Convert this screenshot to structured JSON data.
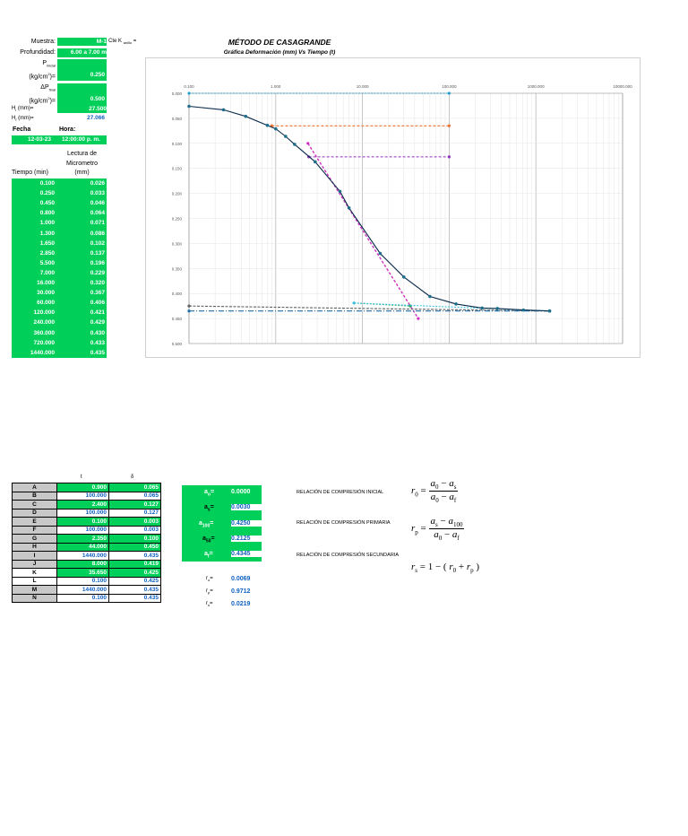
{
  "header": {
    "muestra_label": "Muestra:",
    "muestra_value": "M-1",
    "cte_label": "Cte K",
    "cte_sub": "anillo",
    "cte_eq": "=",
    "profundidad_label": "Profundidad:",
    "profundidad_value": "6.00 a 7.00 m",
    "p_inicial_label": "P",
    "p_inicial_sub": "inicial",
    "p_inicial_units": "(kg/cm",
    "p_inicial_units_end": ")=",
    "p_inicial_value": "0.250",
    "dp_final_label": "ΔP",
    "dp_final_sub": "final",
    "dp_final_units": "(kg/cm",
    "dp_final_units_end": ")=",
    "dp_final_value": "0.500",
    "hi_label": "H",
    "hi_sub": "i",
    "hi_units": "(mm)=",
    "hi_value": "27.500",
    "hf_label": "H",
    "hf_sub": "f",
    "hf_units": "(mm)=",
    "hf_value": "27.066",
    "fecha_label": "Fecha",
    "hora_label": "Hora:",
    "fecha_value": "12-03-23",
    "hora_value": "12:00:00 p. m.",
    "lectura_label_1": "Lectura de",
    "lectura_label_2": "Micrometro",
    "lectura_label_3": "(mm)",
    "tiempo_label": "Tiempo (min)"
  },
  "readings": [
    {
      "t": "0.100",
      "d": "0.026"
    },
    {
      "t": "0.250",
      "d": "0.033"
    },
    {
      "t": "0.450",
      "d": "0.046"
    },
    {
      "t": "0.800",
      "d": "0.064"
    },
    {
      "t": "1.000",
      "d": "0.071"
    },
    {
      "t": "1.300",
      "d": "0.086"
    },
    {
      "t": "1.650",
      "d": "0.102"
    },
    {
      "t": "2.850",
      "d": "0.137"
    },
    {
      "t": "5.500",
      "d": "0.196"
    },
    {
      "t": "7.000",
      "d": "0.229"
    },
    {
      "t": "16.000",
      "d": "0.320"
    },
    {
      "t": "30.000",
      "d": "0.367"
    },
    {
      "t": "60.000",
      "d": "0.406"
    },
    {
      "t": "120.000",
      "d": "0.421"
    },
    {
      "t": "240.000",
      "d": "0.429"
    },
    {
      "t": "360.000",
      "d": "0.430"
    },
    {
      "t": "720.000",
      "d": "0.433"
    },
    {
      "t": "1440.000",
      "d": "0.435"
    }
  ],
  "chart_data": {
    "type": "scatter",
    "title": "MÉTODO DE CASAGRANDE",
    "subtitle": "Gráfica Deformación (mm) Vs Tiempo (t)",
    "x_scale": "log",
    "xlim": [
      0.1,
      10000
    ],
    "ylim": [
      0.5,
      0.0
    ],
    "x_ticks": [
      "0.100",
      "1.000",
      "10.000",
      "100.000",
      "1000.000",
      "10000.000"
    ],
    "y_ticks": [
      "0.000",
      "0.050",
      "0.100",
      "0.150",
      "0.200",
      "0.250",
      "0.300",
      "0.350",
      "0.400",
      "0.450",
      "0.500"
    ],
    "grid": true,
    "series": [
      {
        "x": [
          0.1,
          0.25,
          0.45,
          0.8,
          1.0,
          1.3,
          1.65,
          2.85,
          5.5,
          7.0,
          16.0,
          30.0,
          60.0,
          120.0,
          240.0,
          360.0,
          720.0,
          1440.0
        ],
        "y": [
          0.026,
          0.033,
          0.046,
          0.064,
          0.071,
          0.086,
          0.102,
          0.137,
          0.196,
          0.229,
          0.32,
          0.367,
          0.406,
          0.421,
          0.429,
          0.43,
          0.433,
          0.435
        ]
      }
    ],
    "lines": [
      {
        "x": [
          0.1,
          100
        ],
        "y": [
          0.0,
          0.0
        ],
        "color": "#2aa0c8"
      },
      {
        "x": [
          0.9,
          100
        ],
        "y": [
          0.065,
          0.065
        ],
        "color": "#f07030"
      },
      {
        "x": [
          2.4,
          100
        ],
        "y": [
          0.127,
          0.127
        ],
        "color": "#9030c0"
      },
      {
        "x": [
          2.35,
          44
        ],
        "y": [
          0.1,
          0.45
        ],
        "color": "#d030c0"
      },
      {
        "x": [
          8.0,
          35.65
        ],
        "y": [
          0.419,
          0.425
        ],
        "color": "#20b060"
      },
      {
        "x": [
          0.1,
          1440
        ],
        "y": [
          0.425,
          0.435
        ],
        "color": "#606060"
      },
      {
        "x": [
          0.1,
          1440
        ],
        "y": [
          0.435,
          0.435
        ],
        "color": "#1f6fa8"
      },
      {
        "x": [
          8.0,
          1440
        ],
        "y": [
          0.419,
          0.435
        ],
        "color": "#40c0e0"
      }
    ]
  },
  "points_table": {
    "head_t": "t",
    "head_d": "δ",
    "rows": [
      {
        "k": "A",
        "t": "0.900",
        "d": "0.065"
      },
      {
        "k": "B",
        "t": "100.000",
        "d": "0.065"
      },
      {
        "k": "C",
        "t": "2.400",
        "d": "0.127"
      },
      {
        "k": "D",
        "t": "100.000",
        "d": "0.127"
      },
      {
        "k": "E",
        "t": "0.100",
        "d": "0.003"
      },
      {
        "k": "F",
        "t": "100.000",
        "d": "0.003"
      },
      {
        "k": "G",
        "t": "2.350",
        "d": "0.100"
      },
      {
        "k": "H",
        "t": "44.000",
        "d": "0.450"
      },
      {
        "k": "I",
        "t": "1440.000",
        "d": "0.435"
      },
      {
        "k": "J",
        "t": "8.000",
        "d": "0.419"
      },
      {
        "k": "K",
        "t": "35.650",
        "d": "0.425"
      },
      {
        "k": "L",
        "t": "0.100",
        "d": "0.425"
      },
      {
        "k": "M",
        "t": "1440.000",
        "d": "0.435"
      },
      {
        "k": "N",
        "t": "0.100",
        "d": "0.435"
      }
    ]
  },
  "results": {
    "a0_label": "a",
    "a0_sub": "o",
    "a0_value": "0.0000",
    "as_label": "a",
    "as_sub": "s",
    "as_value": "0.0030",
    "a100_label": "a",
    "a100_sub": "100",
    "a100_value": "0.4250",
    "a50_label": "a",
    "a50_sub": "50",
    "a50_value": "0.2125",
    "af_label": "a",
    "af_sub": "f",
    "af_value": "0.4345",
    "eq": "=",
    "r0_label": "r",
    "r0_sub": "o",
    "r0_value": "0.0069",
    "rp_label": "r",
    "rp_sub": "p",
    "rp_value": "0.9712",
    "rs_label": "r",
    "rs_sub": "s",
    "rs_value": "0.0219"
  },
  "formulas": {
    "inicial_label": "RELACIÓN DE COMPRESIÓN INICIAL",
    "primaria_label": "RELACIÓN DE COMPRESIÓN PRIMARIA",
    "secundaria_label": "RELACIÓN DE COMPRESIÓN SECUNDARIA"
  }
}
